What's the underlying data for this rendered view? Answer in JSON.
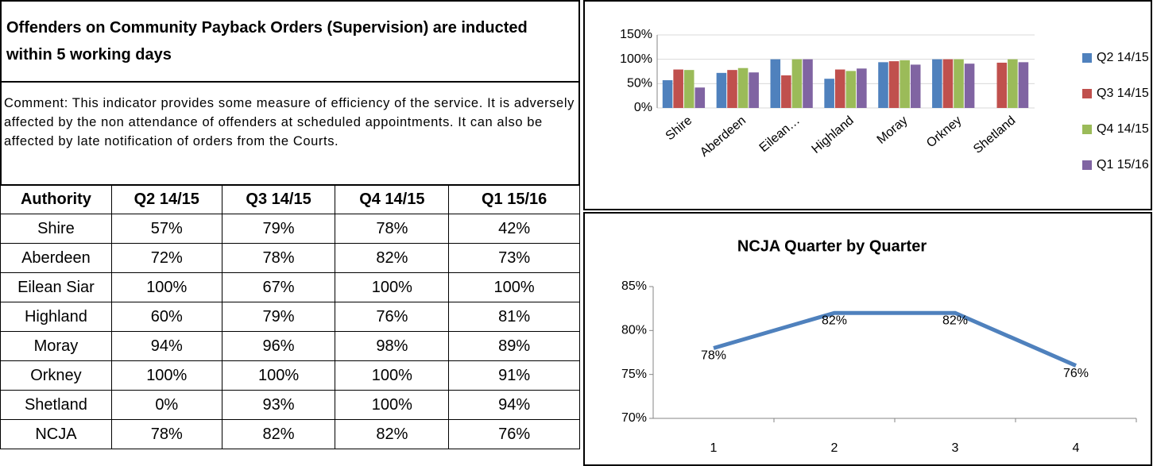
{
  "title": "Offenders on Community Payback Orders (Supervision) are inducted within 5 working days",
  "comment": "Comment: This indicator provides some measure of efficiency of the service. It is adversely affected by the non attendance of offenders at scheduled appointments. It can also be affected by late notification of orders from the Courts.",
  "table": {
    "header": [
      "Authority",
      "Q2 14/15",
      "Q3 14/15",
      "Q4 14/15",
      "Q1 15/16"
    ],
    "rows": [
      [
        "Shire",
        "57%",
        "79%",
        "78%",
        "42%"
      ],
      [
        "Aberdeen",
        "72%",
        "78%",
        "82%",
        "73%"
      ],
      [
        "Eilean Siar",
        "100%",
        "67%",
        "100%",
        "100%"
      ],
      [
        "Highland",
        "60%",
        "79%",
        "76%",
        "81%"
      ],
      [
        "Moray",
        "94%",
        "96%",
        "98%",
        "89%"
      ],
      [
        "Orkney",
        "100%",
        "100%",
        "100%",
        "91%"
      ],
      [
        "Shetland",
        "0%",
        "93%",
        "100%",
        "94%"
      ],
      [
        "NCJA",
        "78%",
        "82%",
        "82%",
        "76%"
      ]
    ]
  },
  "chart_data": [
    {
      "type": "bar",
      "categories": [
        "Shire",
        "Aberdeen",
        "Eilean…",
        "Highland",
        "Moray",
        "Orkney",
        "Shetland"
      ],
      "series": [
        {
          "name": "Q2 14/15",
          "color": "#4f81bd",
          "values": [
            57,
            72,
            100,
            60,
            94,
            100,
            0
          ]
        },
        {
          "name": "Q3 14/15",
          "color": "#c0504d",
          "values": [
            79,
            78,
            67,
            79,
            96,
            100,
            93
          ]
        },
        {
          "name": "Q4 14/15",
          "color": "#9bbb59",
          "values": [
            78,
            82,
            100,
            76,
            98,
            100,
            100
          ]
        },
        {
          "name": "Q1 15/16",
          "color": "#8064a2",
          "values": [
            42,
            73,
            100,
            81,
            89,
            91,
            94
          ]
        }
      ],
      "ylim": [
        0,
        150
      ],
      "yticks": [
        {
          "value": 0,
          "label": "0%"
        },
        {
          "value": 50,
          "label": "50%"
        },
        {
          "value": 100,
          "label": "100%"
        },
        {
          "value": 150,
          "label": "150%"
        }
      ],
      "grid": true,
      "legend": "right"
    },
    {
      "type": "line",
      "title": "NCJA Quarter by Quarter",
      "categories": [
        "1",
        "2",
        "3",
        "4"
      ],
      "values": [
        78,
        82,
        82,
        76
      ],
      "value_labels": [
        "78%",
        "82%",
        "82%",
        "76%"
      ],
      "color": "#4f81bd",
      "ylim": [
        70,
        85
      ],
      "yticks": [
        {
          "value": 70,
          "label": "70%"
        },
        {
          "value": 75,
          "label": "75%"
        },
        {
          "value": 80,
          "label": "80%"
        },
        {
          "value": 85,
          "label": "85%"
        }
      ],
      "grid": false
    }
  ]
}
